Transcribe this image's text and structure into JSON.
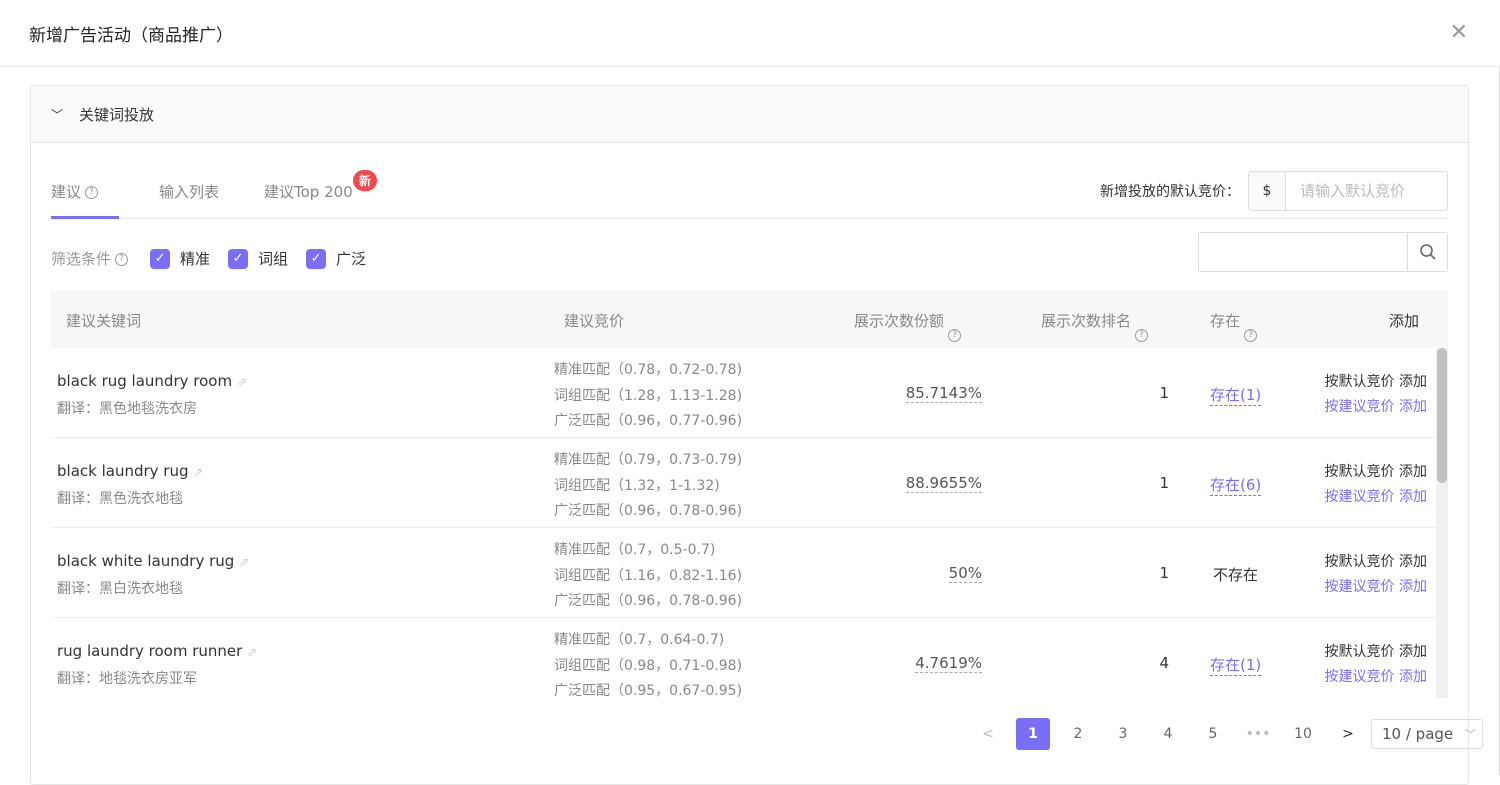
{
  "dialog": {
    "title": "新增广告活动（商品推广）",
    "close_icon": "close-icon"
  },
  "panel": {
    "title": "关键词投放"
  },
  "tabs": [
    {
      "label": "建议",
      "active": true
    },
    {
      "label": "输入列表"
    },
    {
      "label": "建议Top 200",
      "badge": "新"
    }
  ],
  "default_bid": {
    "label": "新增投放的默认竞价：",
    "currency": "$",
    "placeholder": "请输入默认竞价"
  },
  "filters": {
    "label": "筛选条件",
    "options": [
      {
        "label": "精准",
        "checked": true
      },
      {
        "label": "词组",
        "checked": true
      },
      {
        "label": "广泛",
        "checked": true
      }
    ]
  },
  "search": {
    "value": "",
    "placeholder": ""
  },
  "table": {
    "headers": [
      "建议关键词",
      "建议竞价",
      "展示次数份额",
      "展示次数排名",
      "存在",
      "添加"
    ],
    "rows": [
      {
        "keyword": "black rug laundry room",
        "translation": "翻译：黑色地毯洗衣房",
        "bids": [
          "精准匹配（0.78，0.72-0.78)",
          "词组匹配（1.28，1.13-1.28)",
          "广泛匹配（0.96，0.77-0.96)"
        ],
        "share": "85.7143%",
        "rank": "1",
        "exist": "存在(1)",
        "exists": true,
        "add_default": "按默认竞价 添加",
        "add_suggested": "按建议竞价 添加"
      },
      {
        "keyword": "black laundry rug",
        "translation": "翻译：黑色洗衣地毯",
        "bids": [
          "精准匹配（0.79，0.73-0.79)",
          "词组匹配（1.32，1-1.32)",
          "广泛匹配（0.96，0.78-0.96)"
        ],
        "share": "88.9655%",
        "rank": "1",
        "exist": "存在(6)",
        "exists": true,
        "add_default": "按默认竞价 添加",
        "add_suggested": "按建议竞价 添加"
      },
      {
        "keyword": "black white laundry rug",
        "translation": "翻译：黑白洗衣地毯",
        "bids": [
          "精准匹配（0.7，0.5-0.7)",
          "词组匹配（1.16，0.82-1.16)",
          "广泛匹配（0.96，0.78-0.96)"
        ],
        "share": "50%",
        "rank": "1",
        "exist": "不存在",
        "exists": false,
        "add_default": "按默认竞价 添加",
        "add_suggested": "按建议竞价 添加"
      },
      {
        "keyword": "rug laundry room runner",
        "translation": "翻译：地毯洗衣房亚军",
        "bids": [
          "精准匹配（0.7，0.64-0.7)",
          "词组匹配（0.98，0.71-0.98)",
          "广泛匹配（0.95，0.67-0.95)"
        ],
        "share": "4.7619%",
        "rank": "4",
        "exist": "存在(1)",
        "exists": true,
        "add_default": "按默认竞价 添加",
        "add_suggested": "按建议竞价 添加"
      }
    ]
  },
  "pagination": {
    "prev": "<",
    "pages": [
      "1",
      "2",
      "3",
      "4",
      "5"
    ],
    "ellipsis": "•••",
    "last": "10",
    "next": ">",
    "current": "1",
    "page_size": "10 / page"
  },
  "colors": {
    "accent": "#7b6ef6",
    "badge": "#f5484d"
  }
}
